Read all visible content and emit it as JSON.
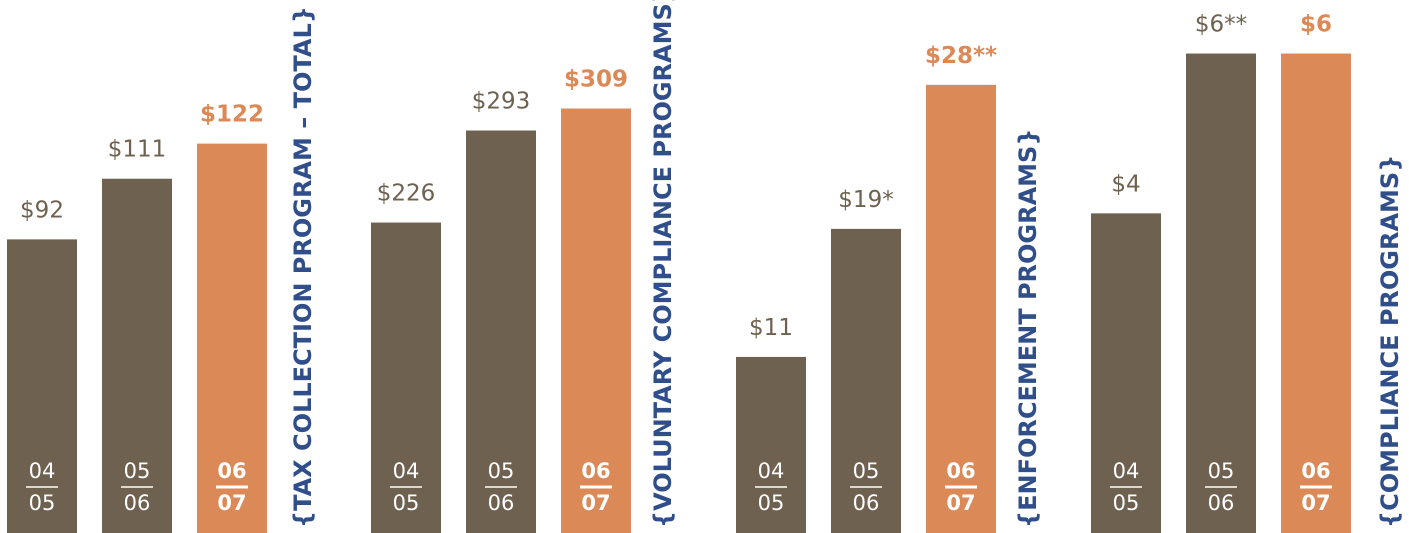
{
  "chart_data": [
    {
      "type": "bar",
      "title": "{TAX COLLECTION PROGRAM – TOTAL}",
      "categories": [
        [
          "04",
          "05"
        ],
        [
          "05",
          "06"
        ],
        [
          "06",
          "07"
        ]
      ],
      "values": [
        92,
        111,
        122
      ],
      "value_labels": [
        "$92",
        "$111",
        "$122"
      ],
      "colors": [
        "#6e6150",
        "#6e6150",
        "#db8957"
      ],
      "ylim": [
        0,
        167
      ]
    },
    {
      "type": "bar",
      "title": "{VOLUNTARY COMPLIANCE PROGRAMS}",
      "categories": [
        [
          "04",
          "05"
        ],
        [
          "05",
          "06"
        ],
        [
          "06",
          "07"
        ]
      ],
      "values": [
        226,
        293,
        309
      ],
      "value_labels": [
        "$226",
        "$293",
        "$309"
      ],
      "colors": [
        "#6e6150",
        "#6e6150",
        "#db8957"
      ],
      "ylim": [
        0,
        388
      ]
    },
    {
      "type": "bar",
      "title": "{ENFORCEMENT PROGRAMS}",
      "categories": [
        [
          "04",
          "05"
        ],
        [
          "05",
          "06"
        ],
        [
          "06",
          "07"
        ]
      ],
      "values": [
        11,
        19,
        28
      ],
      "value_labels": [
        "$11",
        "$19*",
        "$28**"
      ],
      "colors": [
        "#6e6150",
        "#6e6150",
        "#db8957"
      ],
      "ylim": [
        0,
        33.3
      ]
    },
    {
      "type": "bar",
      "title": "{COMPLIANCE PROGRAMS}",
      "categories": [
        [
          "04",
          "05"
        ],
        [
          "05",
          "06"
        ],
        [
          "06",
          "07"
        ]
      ],
      "values": [
        4,
        6,
        6
      ],
      "value_labels": [
        "$4",
        "$6**",
        "$6"
      ],
      "colors": [
        "#6e6150",
        "#6e6150",
        "#db8957"
      ],
      "ylim": [
        0,
        6.67
      ]
    }
  ]
}
